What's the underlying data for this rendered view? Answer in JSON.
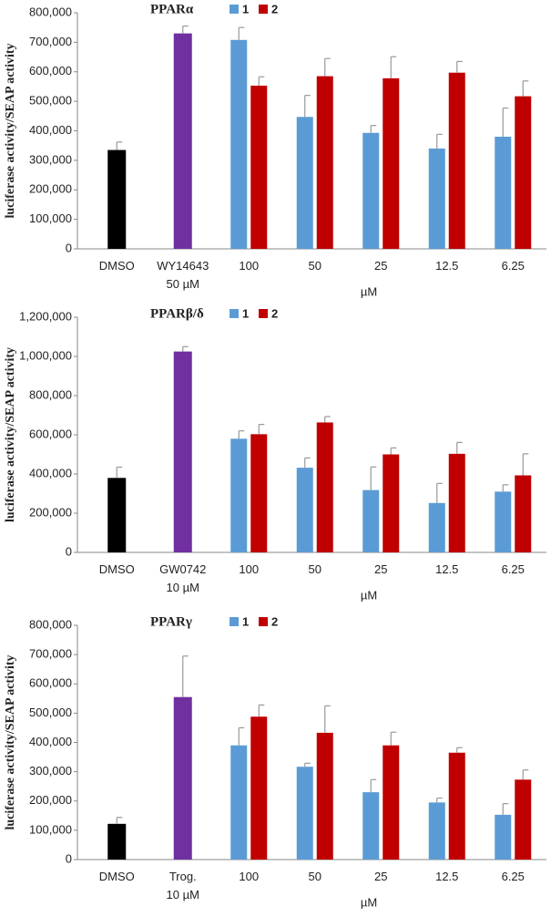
{
  "chart_data": [
    {
      "type": "bar",
      "title": "PPARα",
      "y_label": "luciferase activity/SEAP activity",
      "x_label": "µM",
      "categories": [
        "DMSO",
        "WY14643\n50 µM",
        "100",
        "50",
        "25",
        "12.5",
        "6.25"
      ],
      "series": [
        {
          "colors": [
            "#000000",
            "#7030a0"
          ],
          "values": [
            335000,
            730000,
            null,
            null,
            null,
            null,
            null
          ],
          "errors": [
            27000,
            25000,
            null,
            null,
            null,
            null,
            null
          ]
        },
        {
          "name": "1",
          "color": "#5b9bd5",
          "values": [
            null,
            null,
            708000,
            447000,
            393000,
            340000,
            380000
          ],
          "errors": [
            null,
            null,
            42000,
            73000,
            25000,
            48000,
            97000
          ]
        },
        {
          "name": "2",
          "color": "#c00000",
          "values": [
            null,
            null,
            553000,
            585000,
            578000,
            597000,
            517000
          ],
          "errors": [
            null,
            null,
            30000,
            60000,
            73000,
            38000,
            52000
          ]
        }
      ],
      "ylim": [
        0,
        800000
      ],
      "yticks": [
        0,
        {
          "value": 100000,
          "label": "100,000"
        },
        {
          "value": 200000,
          "label": "200,000"
        },
        {
          "value": 300000,
          "label": "300,000"
        },
        {
          "value": 400000,
          "label": "400,000"
        },
        {
          "value": 500000,
          "label": "500,000"
        },
        {
          "value": 600000,
          "label": "600,000"
        },
        {
          "value": 700000,
          "label": "700,000"
        },
        {
          "value": 800000,
          "label": "800,000"
        }
      ]
    },
    {
      "type": "bar",
      "title": "PPARβ/δ",
      "y_label": "luciferase activity/SEAP activity",
      "x_label": "µM",
      "categories": [
        "DMSO",
        "GW0742\n10 µM",
        "100",
        "50",
        "25",
        "12.5",
        "6.25"
      ],
      "series": [
        {
          "colors": [
            "#000000",
            "#7030a0"
          ],
          "values": [
            380000,
            1025000,
            null,
            null,
            null,
            null,
            null
          ],
          "errors": [
            55000,
            25000,
            null,
            null,
            null,
            null,
            null
          ]
        },
        {
          "name": "1",
          "color": "#5b9bd5",
          "values": [
            null,
            null,
            580000,
            432000,
            318000,
            252000,
            310000
          ],
          "errors": [
            null,
            null,
            40000,
            50000,
            118000,
            100000,
            35000
          ]
        },
        {
          "name": "2",
          "color": "#c00000",
          "values": [
            null,
            null,
            603000,
            663000,
            500000,
            503000,
            393000
          ],
          "errors": [
            null,
            null,
            50000,
            30000,
            33000,
            58000,
            110000
          ]
        }
      ],
      "ylim": [
        0,
        1200000
      ],
      "yticks": [
        0,
        {
          "value": 200000,
          "label": "200,000"
        },
        {
          "value": 400000,
          "label": "400,000"
        },
        {
          "value": 600000,
          "label": "600,000"
        },
        {
          "value": 800000,
          "label": "800,000"
        },
        {
          "value": 1000000,
          "label": "1,000,000"
        },
        {
          "value": 1200000,
          "label": "1,200,000"
        }
      ]
    },
    {
      "type": "bar",
      "title": "PPARγ",
      "y_label": "luciferase activity/SEAP activity",
      "x_label": "µM",
      "categories": [
        "DMSO",
        "Trog.\n10 µM",
        "100",
        "50",
        "25",
        "12.5",
        "6.25"
      ],
      "series": [
        {
          "colors": [
            "#000000",
            "#7030a0"
          ],
          "values": [
            122000,
            555000,
            null,
            null,
            null,
            null,
            null
          ],
          "errors": [
            22000,
            140000,
            null,
            null,
            null,
            null,
            null
          ]
        },
        {
          "name": "1",
          "color": "#5b9bd5",
          "values": [
            null,
            null,
            390000,
            317000,
            230000,
            195000,
            153000
          ],
          "errors": [
            null,
            null,
            60000,
            12000,
            43000,
            15000,
            38000
          ]
        },
        {
          "name": "2",
          "color": "#c00000",
          "values": [
            null,
            null,
            488000,
            433000,
            390000,
            365000,
            273000
          ],
          "errors": [
            null,
            null,
            40000,
            92000,
            45000,
            17000,
            33000
          ]
        }
      ],
      "ylim": [
        0,
        800000
      ],
      "yticks": [
        0,
        {
          "value": 100000,
          "label": "100,000"
        },
        {
          "value": 200000,
          "label": "200,000"
        },
        {
          "value": 300000,
          "label": "300,000"
        },
        {
          "value": 400000,
          "label": "400,000"
        },
        {
          "value": 500000,
          "label": "500,000"
        },
        {
          "value": 600000,
          "label": "600,000"
        },
        {
          "value": 700000,
          "label": "700,000"
        },
        {
          "value": 800000,
          "label": "800,000"
        }
      ]
    }
  ]
}
